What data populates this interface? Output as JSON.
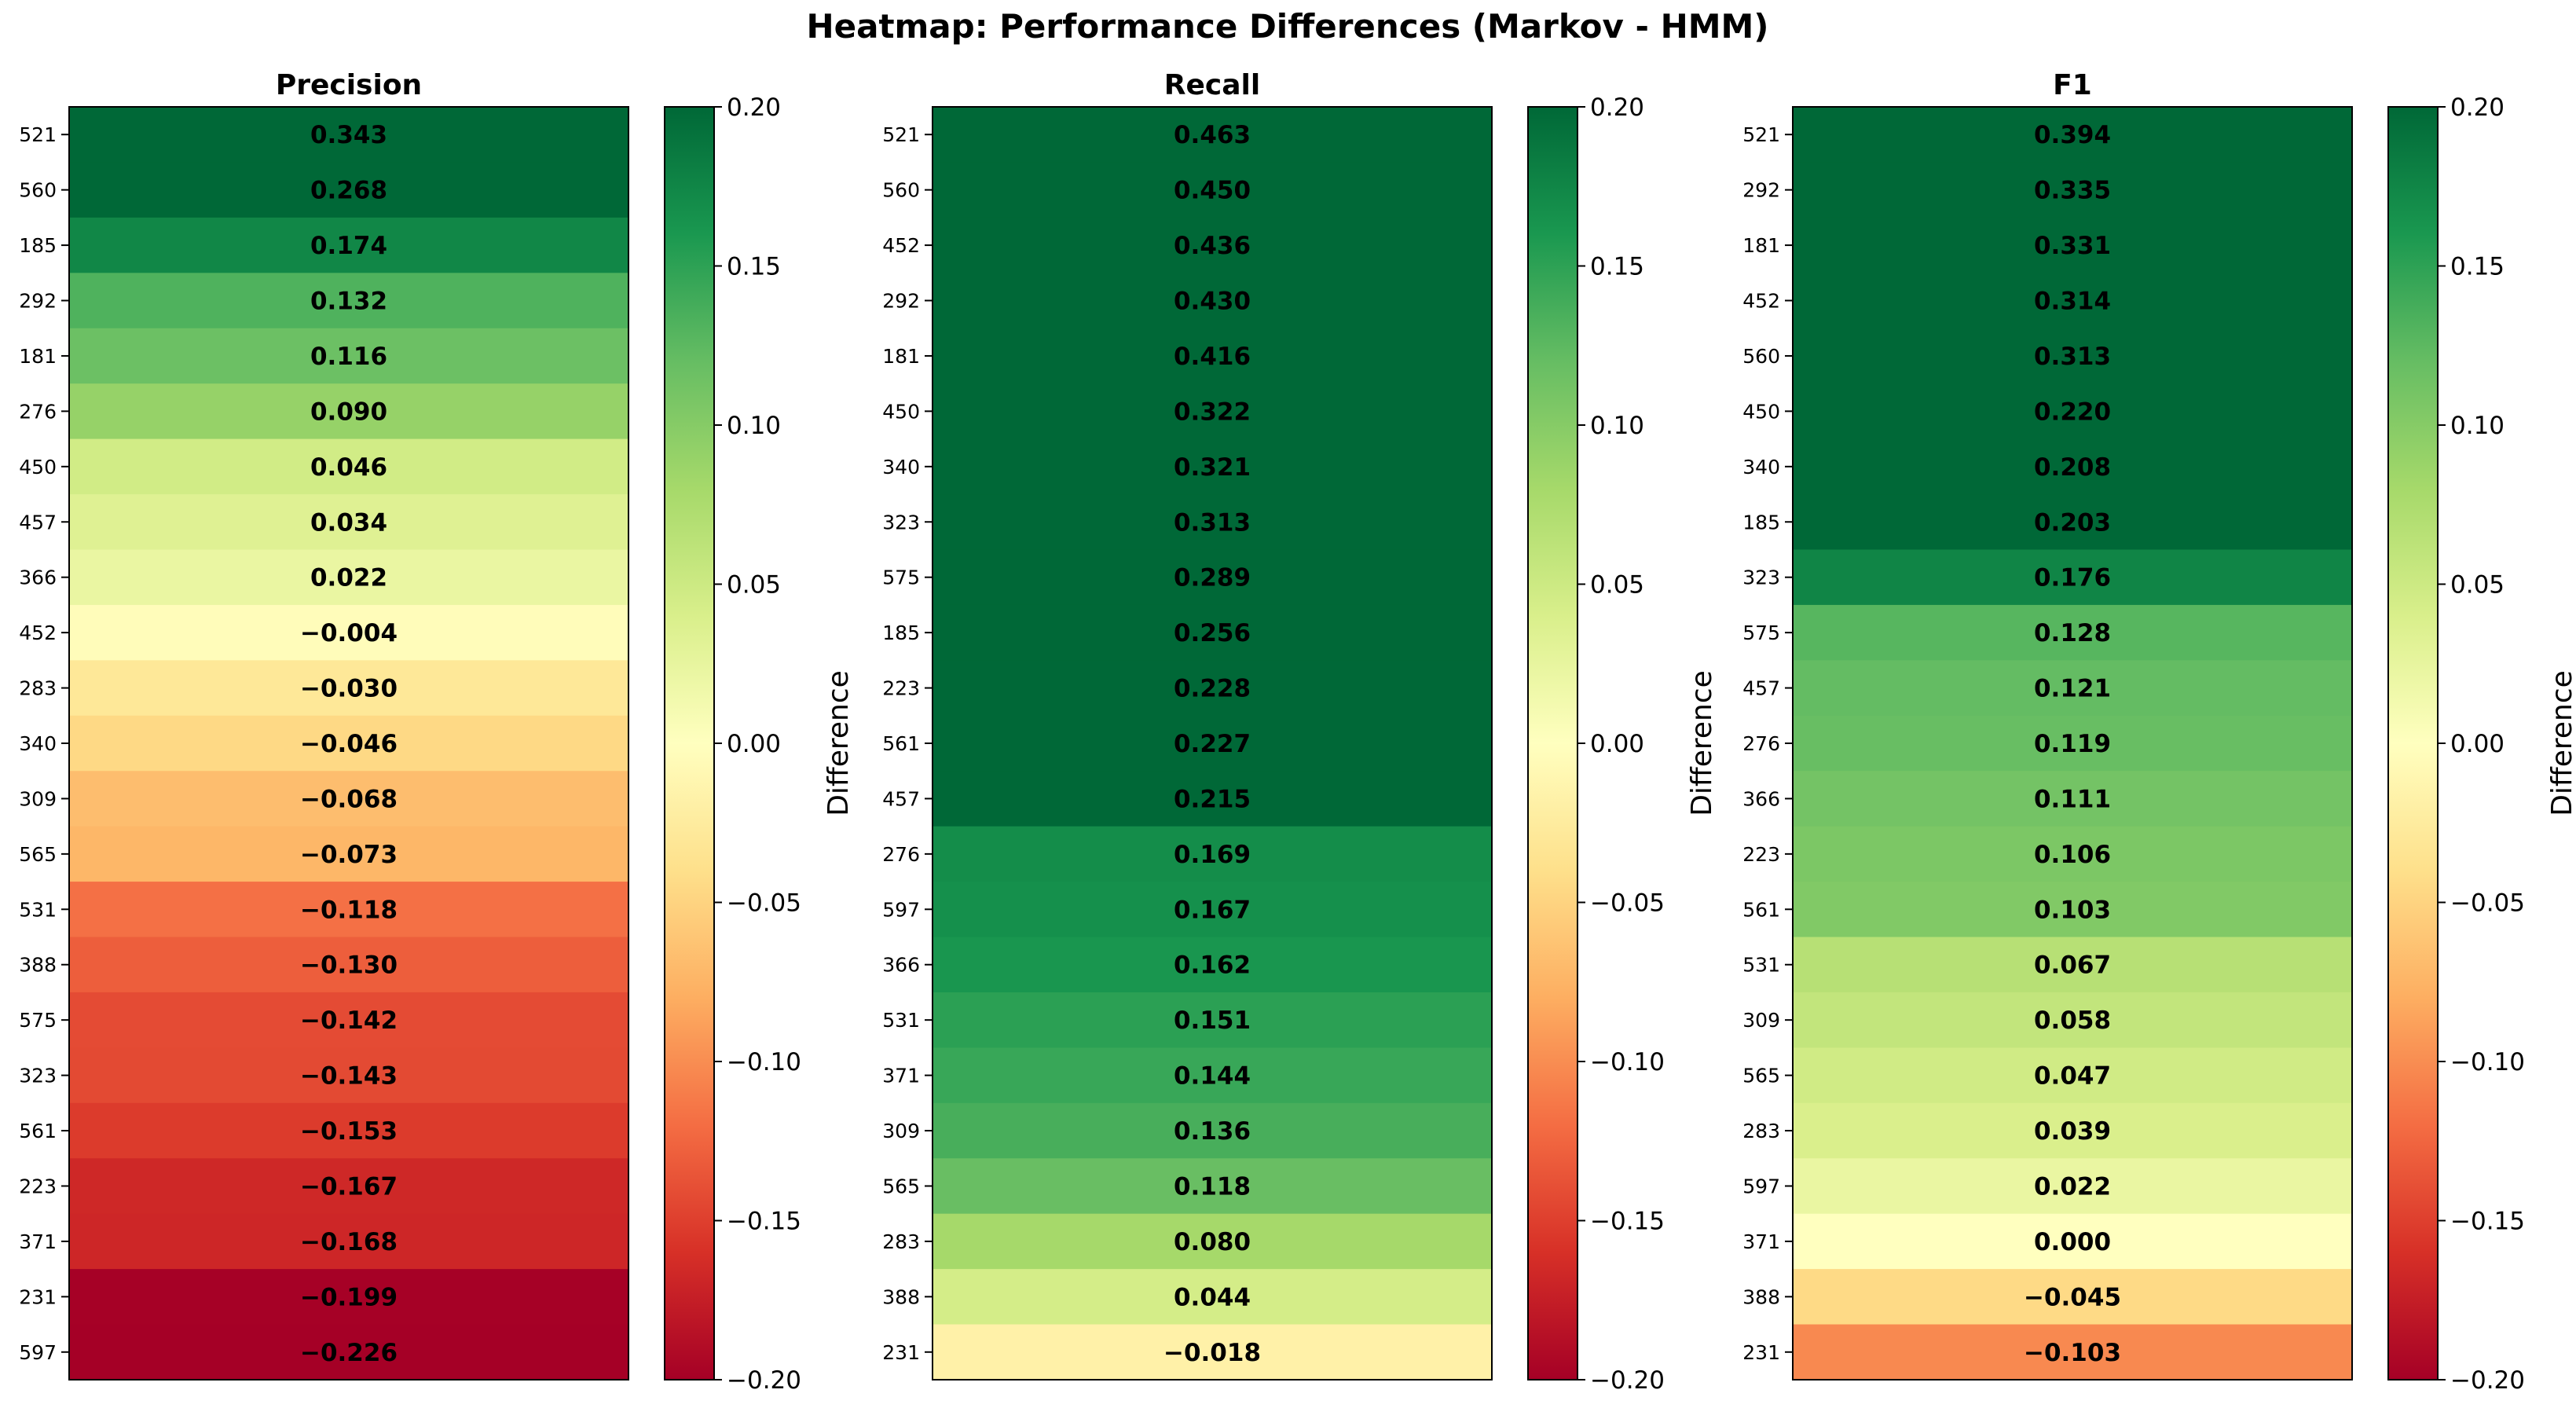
{
  "chart_data": {
    "type": "heatmap",
    "title": "Heatmap: Performance Differences (Markov - HMM)",
    "colormap": "RdYlGn",
    "value_range": [
      -0.2,
      0.2
    ],
    "colorbar_label": "Difference",
    "colorbar_ticks": [
      "0.20",
      "0.15",
      "0.10",
      "0.05",
      "0.00",
      "−0.05",
      "−0.10",
      "−0.15",
      "−0.20"
    ],
    "panels": [
      {
        "title": "Precision",
        "rows": [
          "521",
          "560",
          "185",
          "292",
          "181",
          "276",
          "450",
          "457",
          "366",
          "452",
          "283",
          "340",
          "309",
          "565",
          "531",
          "388",
          "575",
          "323",
          "561",
          "223",
          "371",
          "231",
          "597"
        ],
        "values": [
          0.343,
          0.268,
          0.174,
          0.132,
          0.116,
          0.09,
          0.046,
          0.034,
          0.022,
          -0.004,
          -0.03,
          -0.046,
          -0.068,
          -0.073,
          -0.118,
          -0.13,
          -0.142,
          -0.143,
          -0.153,
          -0.167,
          -0.168,
          -0.199,
          -0.226
        ],
        "labels": [
          "0.343",
          "0.268",
          "0.174",
          "0.132",
          "0.116",
          "0.090",
          "0.046",
          "0.034",
          "0.022",
          "−0.004",
          "−0.030",
          "−0.046",
          "−0.068",
          "−0.073",
          "−0.118",
          "−0.130",
          "−0.142",
          "−0.143",
          "−0.153",
          "−0.167",
          "−0.168",
          "−0.199",
          "−0.226"
        ]
      },
      {
        "title": "Recall",
        "rows": [
          "521",
          "560",
          "452",
          "292",
          "181",
          "450",
          "340",
          "323",
          "575",
          "185",
          "223",
          "561",
          "457",
          "276",
          "597",
          "366",
          "531",
          "371",
          "309",
          "565",
          "283",
          "388",
          "231"
        ],
        "values": [
          0.463,
          0.45,
          0.436,
          0.43,
          0.416,
          0.322,
          0.321,
          0.313,
          0.289,
          0.256,
          0.228,
          0.227,
          0.215,
          0.169,
          0.167,
          0.162,
          0.151,
          0.144,
          0.136,
          0.118,
          0.08,
          0.044,
          -0.018
        ],
        "labels": [
          "0.463",
          "0.450",
          "0.436",
          "0.430",
          "0.416",
          "0.322",
          "0.321",
          "0.313",
          "0.289",
          "0.256",
          "0.228",
          "0.227",
          "0.215",
          "0.169",
          "0.167",
          "0.162",
          "0.151",
          "0.144",
          "0.136",
          "0.118",
          "0.080",
          "0.044",
          "−0.018"
        ]
      },
      {
        "title": "F1",
        "rows": [
          "521",
          "292",
          "181",
          "452",
          "560",
          "450",
          "340",
          "185",
          "323",
          "575",
          "457",
          "276",
          "366",
          "223",
          "561",
          "531",
          "309",
          "565",
          "283",
          "597",
          "371",
          "388",
          "231"
        ],
        "values": [
          0.394,
          0.335,
          0.331,
          0.314,
          0.313,
          0.22,
          0.208,
          0.203,
          0.176,
          0.128,
          0.121,
          0.119,
          0.111,
          0.106,
          0.103,
          0.067,
          0.058,
          0.047,
          0.039,
          0.022,
          0.0,
          -0.045,
          -0.103
        ],
        "labels": [
          "0.394",
          "0.335",
          "0.331",
          "0.314",
          "0.313",
          "0.220",
          "0.208",
          "0.203",
          "0.176",
          "0.128",
          "0.121",
          "0.119",
          "0.111",
          "0.106",
          "0.103",
          "0.067",
          "0.058",
          "0.047",
          "0.039",
          "0.022",
          "0.000",
          "−0.045",
          "−0.103"
        ]
      }
    ]
  }
}
